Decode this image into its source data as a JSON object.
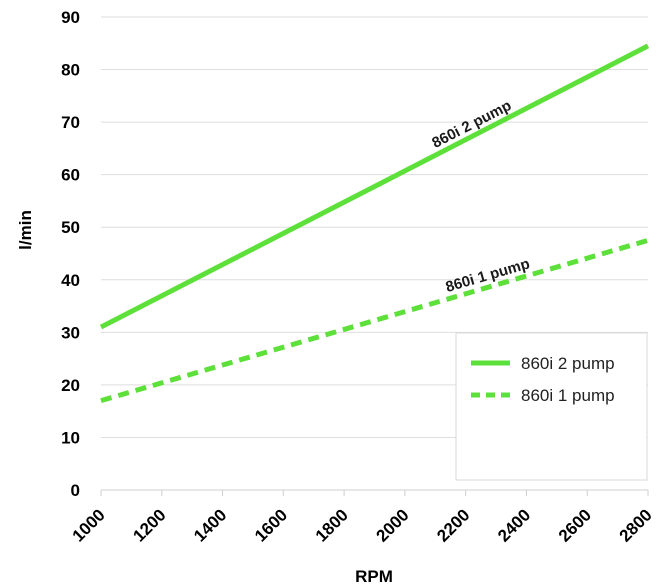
{
  "chart_data": {
    "type": "line",
    "xlabel": "RPM",
    "ylabel": "l/min",
    "xlim": [
      1000,
      2800
    ],
    "ylim": [
      0,
      90
    ],
    "xticks": [
      1000,
      1200,
      1400,
      1600,
      1800,
      2000,
      2200,
      2400,
      2600,
      2800
    ],
    "yticks": [
      0,
      10,
      20,
      30,
      40,
      50,
      60,
      70,
      80,
      90
    ],
    "grid": "horizontal",
    "legend_position": "bottom-right",
    "series": [
      {
        "name": "860i 2 pump",
        "style": "solid",
        "color": "#5ee03a",
        "x": [
          1000,
          2800
        ],
        "y": [
          31,
          84.5
        ],
        "label": "860i 2 pump"
      },
      {
        "name": "860i 1 pump",
        "style": "dashed",
        "color": "#5ee03a",
        "x": [
          1000,
          2800
        ],
        "y": [
          17,
          47.5
        ],
        "label": "860i 1 pump"
      }
    ]
  }
}
